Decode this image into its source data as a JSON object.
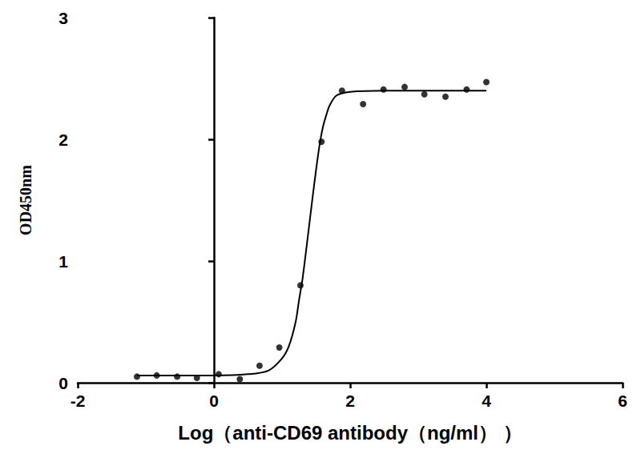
{
  "chart_data": {
    "type": "scatter",
    "xlabel": "Log（anti-CD69 antibody（ng/ml） ）",
    "ylabel": "OD450nm",
    "xlim": [
      -2,
      6
    ],
    "xticks": [
      -2,
      0,
      2,
      4,
      6
    ],
    "ylim": [
      0,
      3
    ],
    "yticks": [
      0,
      1,
      2,
      3
    ],
    "grid": false,
    "series": [
      {
        "type": "scatter",
        "marker": "circle",
        "color": "#000000",
        "x": [
          -1.13,
          -0.84,
          -0.54,
          -0.25,
          0.07,
          0.38,
          0.67,
          0.96,
          1.27,
          1.58,
          1.88,
          2.19,
          2.49,
          2.8,
          3.09,
          3.4,
          3.71,
          4.0
        ],
        "values": [
          0.05,
          0.06,
          0.05,
          0.04,
          0.07,
          0.03,
          0.14,
          0.29,
          0.8,
          1.98,
          2.4,
          2.29,
          2.41,
          2.43,
          2.37,
          2.35,
          2.41,
          2.47
        ]
      },
      {
        "type": "line",
        "line_style": "solid",
        "color": "#000000",
        "x": [
          -1.13,
          0,
          0.5,
          0.8,
          1.0,
          1.1,
          1.2,
          1.25,
          1.3,
          1.35,
          1.4,
          1.45,
          1.5,
          1.55,
          1.6,
          1.65,
          1.7,
          1.8,
          2.0,
          2.5,
          4.0
        ],
        "values": [
          0.06,
          0.06,
          0.07,
          0.1,
          0.2,
          0.3,
          0.5,
          0.68,
          0.85,
          1.07,
          1.3,
          1.53,
          1.75,
          1.95,
          2.1,
          2.2,
          2.28,
          2.36,
          2.39,
          2.4,
          2.4
        ]
      }
    ]
  }
}
